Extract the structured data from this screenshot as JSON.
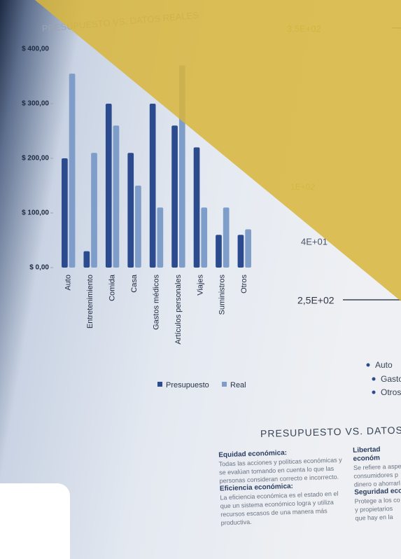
{
  "chart_data": {
    "type": "bar",
    "title": "PRESUPUESTO VS. DATOS REALES",
    "categories": [
      "Auto",
      "Entretenimiento",
      "Comida",
      "Casa",
      "Gastos médicos",
      "Artículos personales",
      "Viajes",
      "Suministros",
      "Otros"
    ],
    "series": [
      {
        "name": "Presupuesto",
        "color": "#2c4b8e",
        "values": [
          200,
          30,
          300,
          210,
          300,
          260,
          220,
          60,
          60
        ]
      },
      {
        "name": "Real",
        "color": "#7f9dc9",
        "values": [
          355,
          210,
          260,
          150,
          110,
          370,
          110,
          110,
          70
        ]
      }
    ],
    "ylim": [
      0,
      400
    ],
    "yticks": [
      {
        "value": 0,
        "label": "$ 0,00"
      },
      {
        "value": 100,
        "label": "$ 100,00"
      },
      {
        "value": 200,
        "label": "$ 200,00"
      },
      {
        "value": 300,
        "label": "$ 300,00"
      },
      {
        "value": 400,
        "label": "$ 400,00"
      }
    ]
  },
  "pie_panel": {
    "axis_labels": [
      "3,5E+02",
      "1E+02",
      "4E+01",
      "2,5E+02"
    ],
    "legend": [
      "Auto",
      "Gasto",
      "Otros"
    ]
  },
  "document": {
    "heading": "PRESUPUESTO VS. DATOS RE",
    "left": [
      {
        "title": "Equidad económica:",
        "text": "Todas las acciones y políticas económicas y se evalúan tomando en cuenta lo que las personas consideran correcto e incorrecto."
      },
      {
        "title": "Eficiencia económica:",
        "text": "La eficiencia económica es el estado en el que un sistema económico logra y utiliza recursos escasos de una manera más productiva."
      }
    ],
    "right": [
      {
        "title": "Libertad económ",
        "text": "Se refiere a aspe consumidores p dinero o ahorrarl"
      },
      {
        "title": "Seguridad eco",
        "text": "Protege a los co y propietarios que hay en la"
      }
    ]
  }
}
